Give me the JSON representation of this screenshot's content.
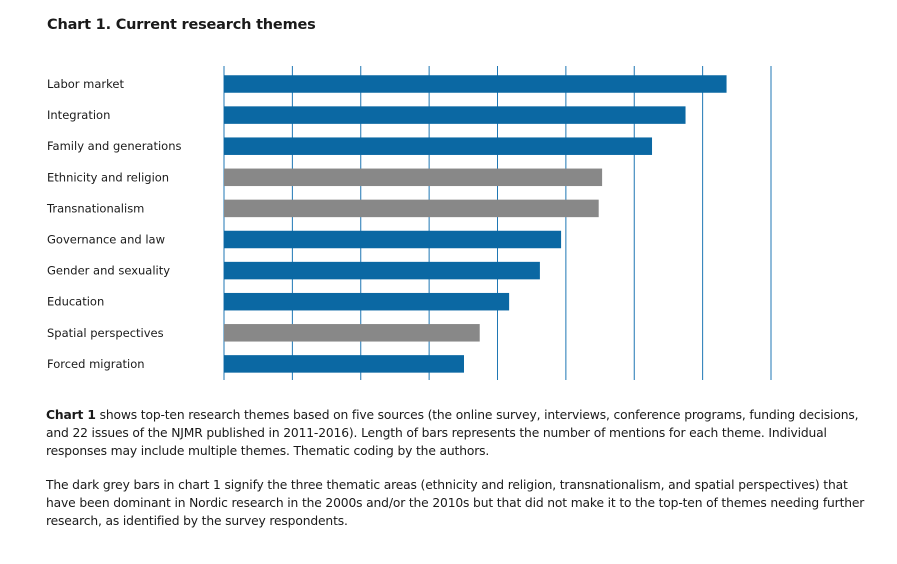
{
  "chart_data": {
    "type": "bar",
    "orientation": "horizontal",
    "title": "Chart 1. Current research themes",
    "categories": [
      "Labor market",
      "Integration",
      "Family and generations",
      "Ethnicity and religion",
      "Transnationalism",
      "Governance and law",
      "Gender and sexuality",
      "Education",
      "Spatial perspectives",
      "Forced migration"
    ],
    "values": [
      7.35,
      6.75,
      6.26,
      5.53,
      5.48,
      4.93,
      4.62,
      4.17,
      3.74,
      3.51
    ],
    "bar_groups": [
      "blue",
      "blue",
      "blue",
      "grey",
      "grey",
      "blue",
      "blue",
      "blue",
      "grey",
      "blue"
    ],
    "colors": {
      "blue": "#0b68a3",
      "grey": "#888888",
      "grid": "#1f77b4"
    },
    "xlim": [
      0,
      8
    ],
    "grid": true,
    "xlabel": "",
    "ylabel": ""
  },
  "caption": {
    "lead": "Chart 1",
    "text1": " shows top-ten research themes based on five sources (the online survey, interviews, conference programs, funding decisions, and 22 issues of the NJMR published in 2011-2016). Length of bars represents the number of mentions for each theme. Individual responses may include multiple themes. Thematic coding by the authors.",
    "text2": "The dark grey bars in chart 1 signify the three thematic areas (ethnicity and religion, transnationalism, and spatial perspectives) that have been dominant in Nordic research in the 2000s and/or the 2010s but that did not make it to the top-ten of themes needing further research, as identified by the survey respondents."
  }
}
